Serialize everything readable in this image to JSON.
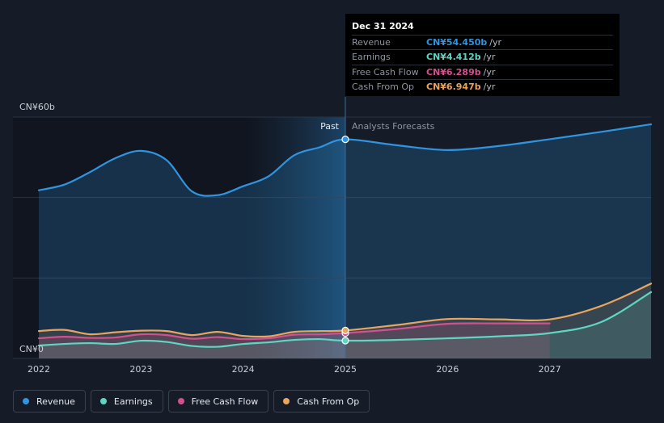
{
  "chart_data": {
    "type": "area",
    "x_ticks": [
      "2022",
      "2023",
      "2024",
      "2025",
      "2026",
      "2027"
    ],
    "y_tick_labels": [
      "CN¥0",
      "CN¥60b"
    ],
    "ylim": [
      0,
      60
    ],
    "xlim": [
      2021.75,
      2028.0
    ],
    "past_label": "Past",
    "forecast_label": "Analysts Forecasts",
    "divider_x": 2025.0,
    "series": [
      {
        "name": "Revenue",
        "color": "#2f95e0",
        "points": [
          [
            2022.0,
            41.8
          ],
          [
            2022.25,
            43.2
          ],
          [
            2022.5,
            46.3
          ],
          [
            2022.75,
            49.8
          ],
          [
            2023.0,
            51.6
          ],
          [
            2023.25,
            49.3
          ],
          [
            2023.5,
            41.5
          ],
          [
            2023.75,
            40.6
          ],
          [
            2024.0,
            42.8
          ],
          [
            2024.25,
            45.3
          ],
          [
            2024.5,
            50.5
          ],
          [
            2024.75,
            52.5
          ],
          [
            2025.0,
            54.45
          ],
          [
            2025.5,
            53.0
          ],
          [
            2026.0,
            51.8
          ],
          [
            2026.5,
            52.8
          ],
          [
            2027.0,
            54.5
          ],
          [
            2027.5,
            56.3
          ],
          [
            2028.0,
            58.2
          ]
        ]
      },
      {
        "name": "Earnings",
        "color": "#5fd6c3",
        "points": [
          [
            2022.0,
            3.2
          ],
          [
            2022.25,
            3.6
          ],
          [
            2022.5,
            3.8
          ],
          [
            2022.75,
            3.6
          ],
          [
            2023.0,
            4.4
          ],
          [
            2023.25,
            4.1
          ],
          [
            2023.5,
            3.1
          ],
          [
            2023.75,
            2.9
          ],
          [
            2024.0,
            3.6
          ],
          [
            2024.25,
            4.0
          ],
          [
            2024.5,
            4.6
          ],
          [
            2024.75,
            4.8
          ],
          [
            2025.0,
            4.412
          ],
          [
            2025.5,
            4.6
          ],
          [
            2026.0,
            5.0
          ],
          [
            2026.5,
            5.5
          ],
          [
            2027.0,
            6.3
          ],
          [
            2027.5,
            9.0
          ],
          [
            2028.0,
            16.5
          ]
        ]
      },
      {
        "name": "Free Cash Flow",
        "color": "#d3508f",
        "points": [
          [
            2022.0,
            5.0
          ],
          [
            2022.25,
            5.4
          ],
          [
            2022.5,
            5.1
          ],
          [
            2022.75,
            5.2
          ],
          [
            2023.0,
            6.0
          ],
          [
            2023.25,
            5.8
          ],
          [
            2023.5,
            4.9
          ],
          [
            2023.75,
            5.3
          ],
          [
            2024.0,
            4.8
          ],
          [
            2024.25,
            5.0
          ],
          [
            2024.5,
            5.9
          ],
          [
            2024.75,
            6.0
          ],
          [
            2025.0,
            6.289
          ],
          [
            2025.5,
            7.3
          ],
          [
            2026.0,
            8.6
          ],
          [
            2026.5,
            8.7
          ],
          [
            2027.0,
            8.7
          ]
        ]
      },
      {
        "name": "Cash From Op",
        "color": "#e9a55d",
        "points": [
          [
            2022.0,
            6.8
          ],
          [
            2022.25,
            7.1
          ],
          [
            2022.5,
            6.0
          ],
          [
            2022.75,
            6.5
          ],
          [
            2023.0,
            6.9
          ],
          [
            2023.25,
            6.8
          ],
          [
            2023.5,
            5.8
          ],
          [
            2023.75,
            6.6
          ],
          [
            2024.0,
            5.6
          ],
          [
            2024.25,
            5.5
          ],
          [
            2024.5,
            6.6
          ],
          [
            2024.75,
            6.8
          ],
          [
            2025.0,
            6.947
          ],
          [
            2025.5,
            8.3
          ],
          [
            2026.0,
            9.8
          ],
          [
            2026.5,
            9.7
          ],
          [
            2027.0,
            9.7
          ],
          [
            2027.5,
            13.0
          ],
          [
            2028.0,
            18.6
          ]
        ]
      }
    ]
  },
  "tooltip": {
    "date": "Dec 31 2024",
    "rows": [
      {
        "label": "Revenue",
        "value": "CN¥54.450b",
        "unit": "/yr",
        "color": "#2f95e0"
      },
      {
        "label": "Earnings",
        "value": "CN¥4.412b",
        "unit": "/yr",
        "color": "#5fd6c3"
      },
      {
        "label": "Free Cash Flow",
        "value": "CN¥6.289b",
        "unit": "/yr",
        "color": "#d3508f"
      },
      {
        "label": "Cash From Op",
        "value": "CN¥6.947b",
        "unit": "/yr",
        "color": "#e9a55d"
      }
    ]
  },
  "legend": [
    {
      "label": "Revenue",
      "color": "#2f95e0"
    },
    {
      "label": "Earnings",
      "color": "#5fd6c3"
    },
    {
      "label": "Free Cash Flow",
      "color": "#d3508f"
    },
    {
      "label": "Cash From Op",
      "color": "#e9a55d"
    }
  ]
}
